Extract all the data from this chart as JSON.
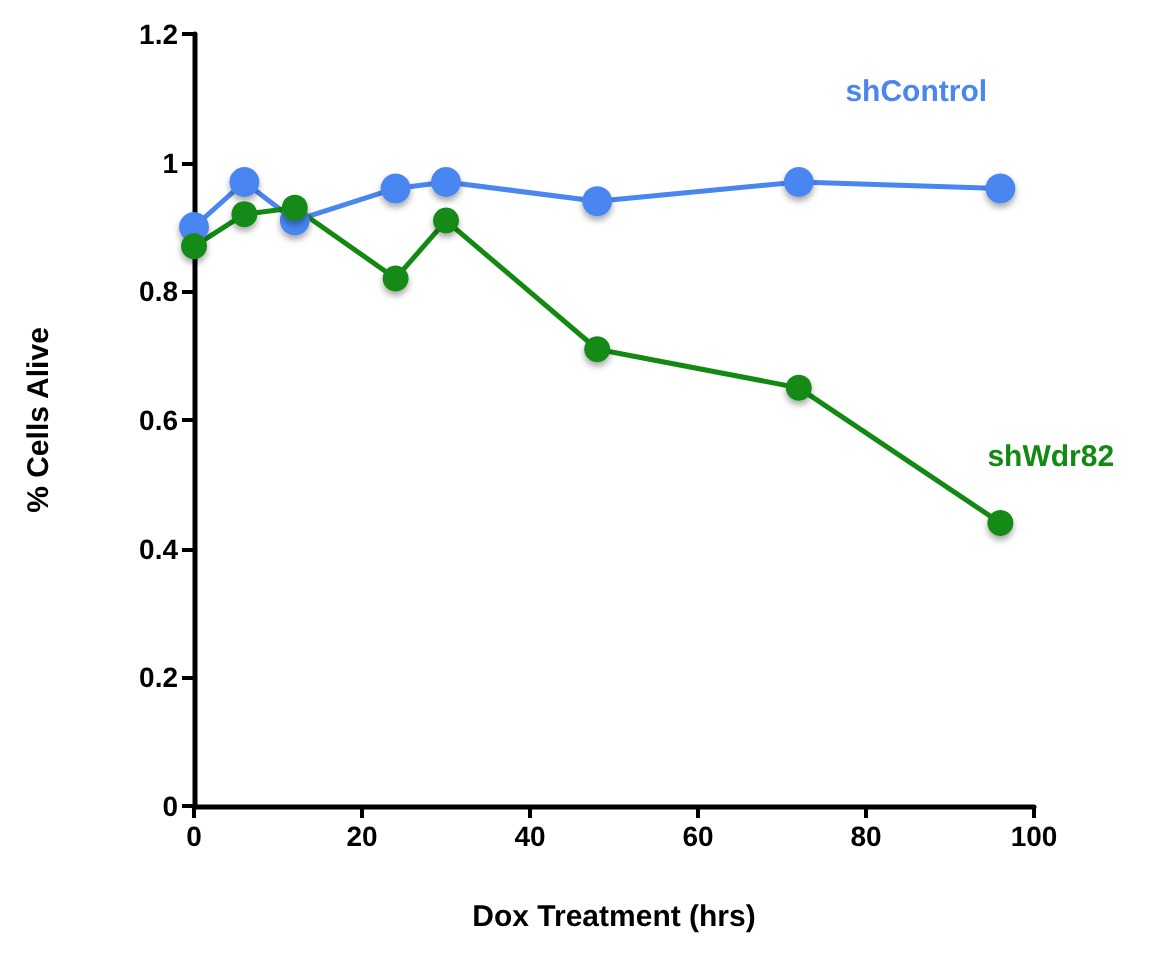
{
  "chart_data": {
    "type": "line",
    "xlabel": "Dox Treatment (hrs)",
    "ylabel": "% Cells Alive",
    "x": [
      0,
      6,
      12,
      24,
      30,
      48,
      72,
      96
    ],
    "series": [
      {
        "name": "shControl",
        "color": "#4a86f0",
        "values": [
          0.9,
          0.97,
          0.91,
          0.96,
          0.97,
          0.94,
          0.97,
          0.96
        ]
      },
      {
        "name": "shWdr82",
        "color": "#128a12",
        "values": [
          0.87,
          0.92,
          0.93,
          0.82,
          0.91,
          0.71,
          0.65,
          0.44
        ]
      }
    ],
    "xlim": [
      0,
      100
    ],
    "xticks": [
      0,
      20,
      40,
      60,
      80,
      100
    ],
    "ylim": [
      0,
      1.2
    ],
    "yticks": [
      0,
      0.2,
      0.4,
      0.6,
      0.8,
      1,
      1.2
    ],
    "grid": false,
    "legend": false,
    "marker": "circle",
    "line_style": "solid"
  }
}
